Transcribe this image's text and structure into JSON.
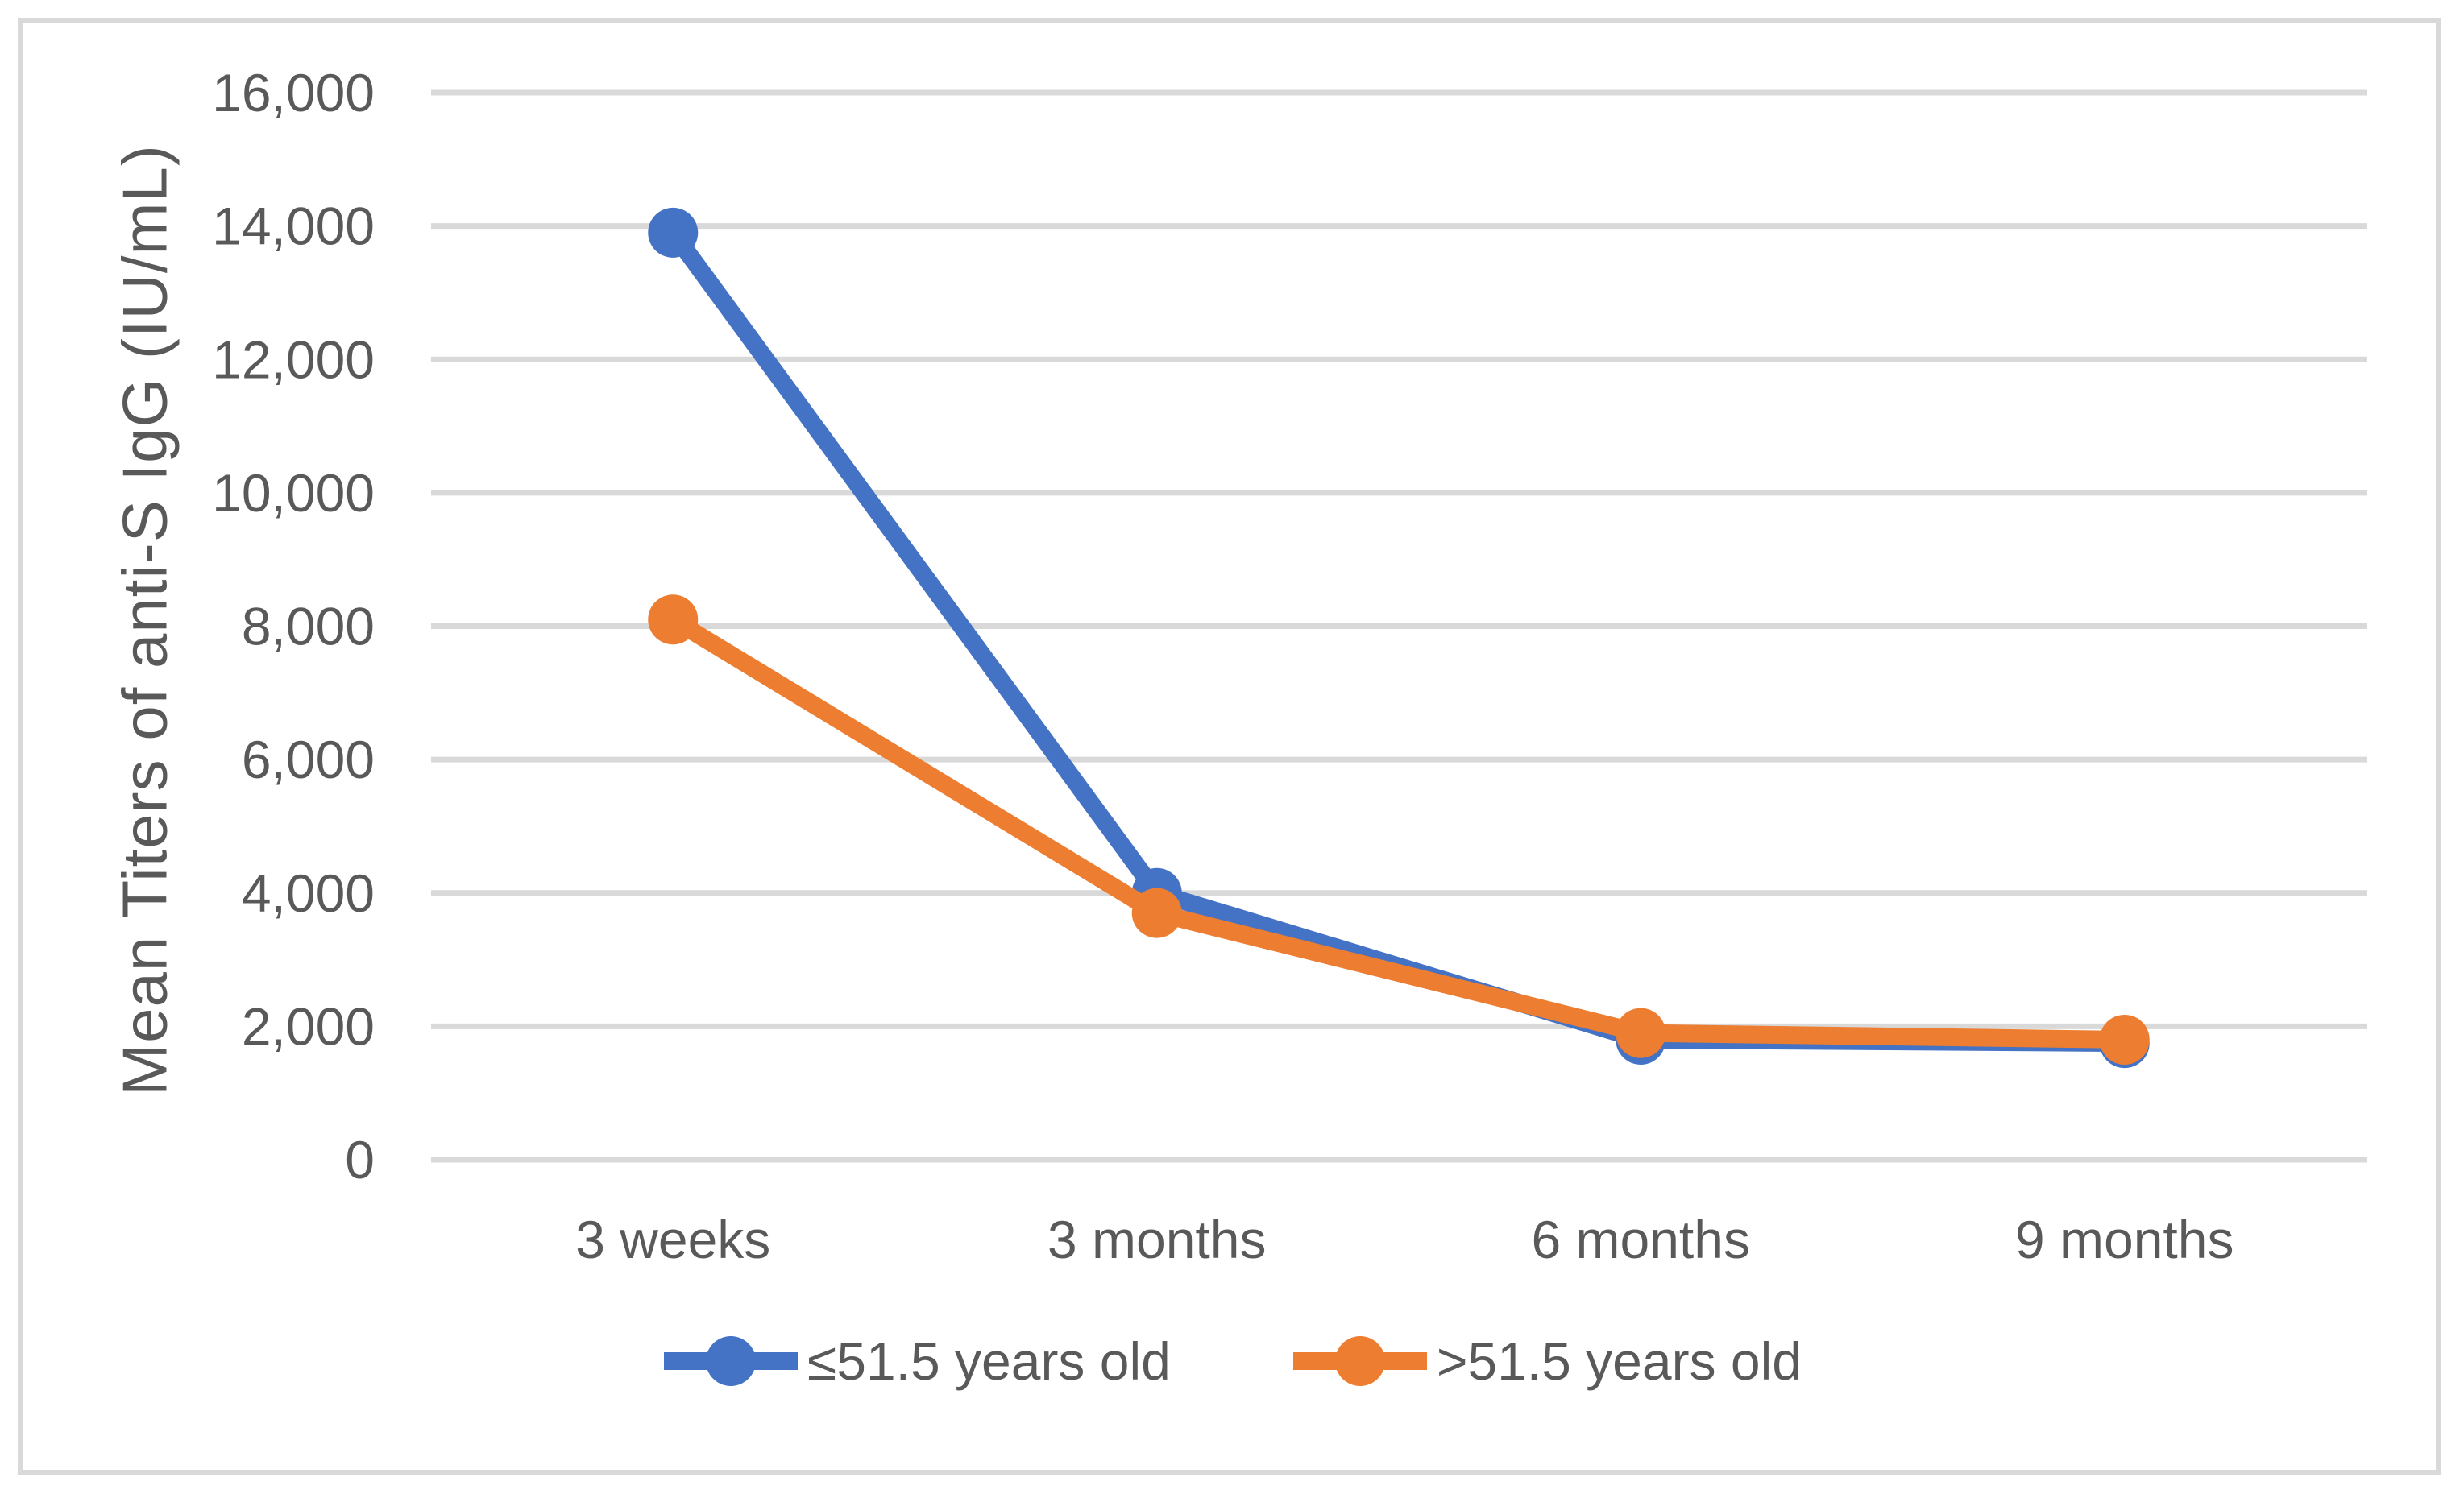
{
  "chart_data": {
    "type": "line",
    "categories": [
      "3 weeks",
      "3 months",
      "6 months",
      "9 months"
    ],
    "series": [
      {
        "name": "≤51.5 years old",
        "color": "#4472C4",
        "values": [
          13900,
          4000,
          1800,
          1750
        ]
      },
      {
        "name": ">51.5 years old",
        "color": "#ED7D31",
        "values": [
          8100,
          3700,
          1900,
          1800
        ]
      }
    ],
    "title": "",
    "xlabel": "",
    "ylabel": "Mean Titers of anti-S IgG (IU/mL)",
    "ylim": [
      0,
      16000
    ],
    "ytick_step": 2000,
    "ytick_labels": [
      "0",
      "2,000",
      "4,000",
      "6,000",
      "8,000",
      "10,000",
      "12,000",
      "14,000",
      "16,000"
    ],
    "grid": true,
    "legend_position": "bottom",
    "gridline_color": "#D9D9D9",
    "frame_color": "#D9D9D9",
    "text_color": "#595959"
  }
}
